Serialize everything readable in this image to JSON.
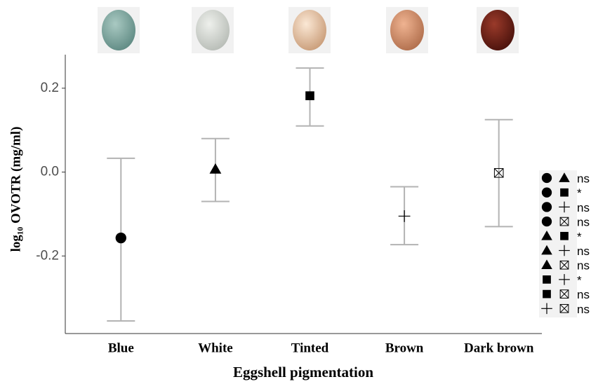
{
  "chart_data": {
    "type": "errorbar",
    "xlabel": "Eggshell pigmentation",
    "ylabel": "log₁₀ OVOTR (mg/ml)",
    "categories": [
      "Blue",
      "White",
      "Tinted",
      "Brown",
      "Dark brown"
    ],
    "values": [
      -0.157,
      0.007,
      0.182,
      -0.105,
      -0.002
    ],
    "lower": [
      -0.355,
      -0.07,
      0.11,
      -0.173,
      -0.13
    ],
    "upper": [
      0.033,
      0.08,
      0.248,
      -0.035,
      0.125
    ],
    "markers": [
      "circle",
      "triangle",
      "square",
      "plus",
      "boxed-x"
    ],
    "color": "#000000",
    "errorbar_color": "#b3b3b3",
    "ylim": [
      -0.385,
      0.28
    ],
    "yticks": [
      -0.2,
      {
        "value": 0,
        "label": "0.0"
      },
      0.2
    ],
    "comparisons": [
      {
        "pair": [
          "circle",
          "triangle"
        ],
        "label": "ns"
      },
      {
        "pair": [
          "circle",
          "square"
        ],
        "label": "*"
      },
      {
        "pair": [
          "circle",
          "plus"
        ],
        "label": "ns"
      },
      {
        "pair": [
          "circle",
          "boxed-x"
        ],
        "label": "ns"
      },
      {
        "pair": [
          "triangle",
          "square"
        ],
        "label": "*"
      },
      {
        "pair": [
          "triangle",
          "plus"
        ],
        "label": "ns"
      },
      {
        "pair": [
          "triangle",
          "boxed-x"
        ],
        "label": "ns"
      },
      {
        "pair": [
          "square",
          "plus"
        ],
        "label": "*"
      },
      {
        "pair": [
          "square",
          "boxed-x"
        ],
        "label": "ns"
      },
      {
        "pair": [
          "plus",
          "boxed-x"
        ],
        "label": "ns"
      }
    ]
  }
}
